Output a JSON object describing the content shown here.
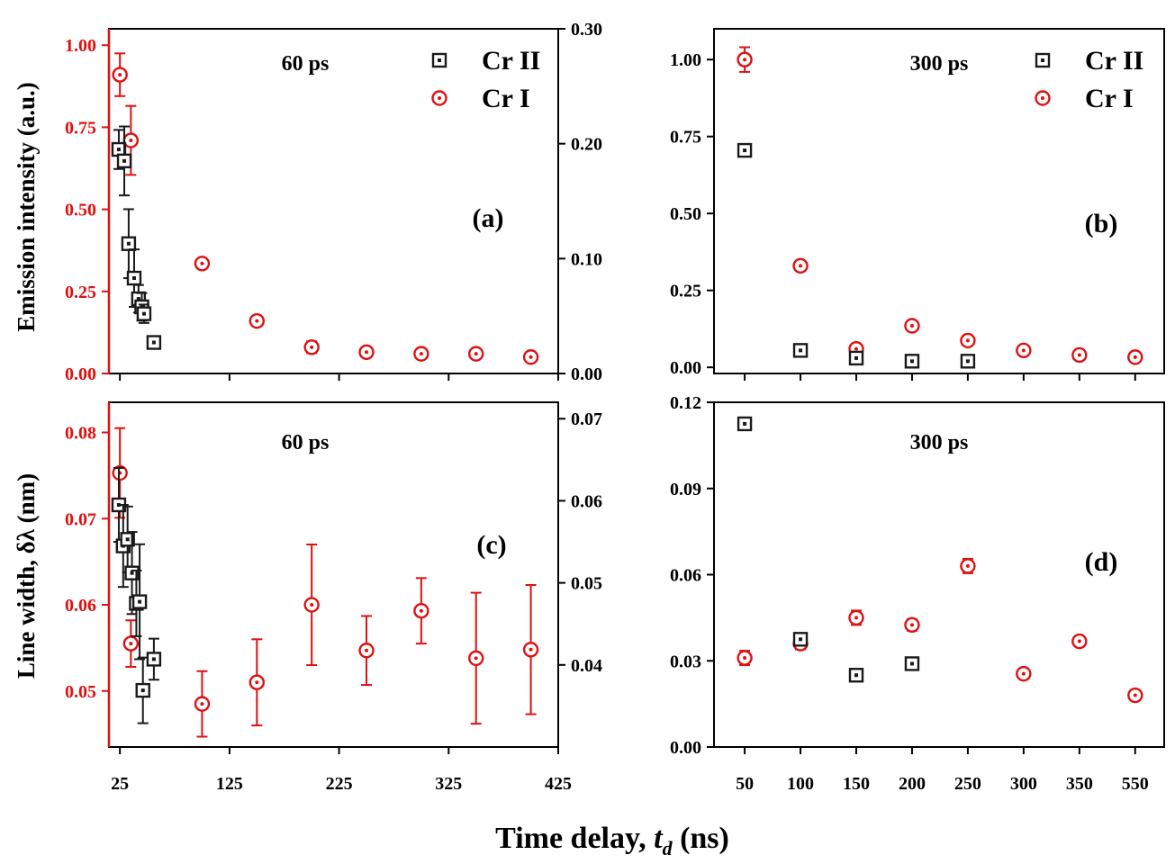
{
  "figure": {
    "xlabel_prefix": "Time delay, ",
    "xlabel_var": "t",
    "xlabel_sub": "d",
    "xlabel_suffix": " (ns)",
    "ylabel_top": "Emission intensity (a.u.)",
    "ylabel_bottom": "Line width, δλ (nm)"
  },
  "colors": {
    "cr2": "#1a1a1a",
    "cr1": "#e01010",
    "axis": "#000000"
  },
  "chart_data": [
    {
      "id": "a",
      "type": "scatter",
      "panel_label": "(a)",
      "title": "60 ps",
      "legend": [
        "Cr II",
        "Cr I"
      ],
      "legend_position": "top-right",
      "xlim": [
        15,
        425
      ],
      "xticks": [
        25,
        125,
        225,
        325,
        425
      ],
      "ylim_left": [
        0,
        1.05
      ],
      "yticks_left": [
        "0.00",
        "0.25",
        "0.50",
        "0.75",
        "1.00"
      ],
      "left_axis_color": "#e01010",
      "ylim_right": [
        0,
        0.3
      ],
      "yticks_right": [
        "0.00",
        "0.10",
        "0.20",
        "0.30"
      ],
      "series": [
        {
          "name": "Cr I",
          "axis": "left",
          "marker": "circle",
          "color": "#e01010",
          "x": [
            25,
            35,
            100,
            150,
            200,
            250,
            300,
            350,
            400
          ],
          "y": [
            0.91,
            0.71,
            0.335,
            0.16,
            0.08,
            0.065,
            0.06,
            0.06,
            0.05
          ],
          "err": [
            0.065,
            0.105,
            0.012,
            0.012,
            0.018,
            0.012,
            0.01,
            0.01,
            0.01
          ]
        },
        {
          "name": "Cr II",
          "axis": "right",
          "marker": "square",
          "color": "#1a1a1a",
          "x": [
            24,
            29,
            33,
            38,
            42,
            45,
            47,
            56
          ],
          "y": [
            0.195,
            0.185,
            0.113,
            0.083,
            0.065,
            0.058,
            0.052,
            0.027
          ],
          "err": [
            0.017,
            0.03,
            0.03,
            0.025,
            0.012,
            0.012,
            0.008,
            0
          ]
        }
      ]
    },
    {
      "id": "b",
      "type": "scatter",
      "panel_label": "(b)",
      "title": "300 ps",
      "legend": [
        "Cr II",
        "Cr I"
      ],
      "legend_position": "top-right",
      "categories": [
        "50",
        "100",
        "150",
        "200",
        "250",
        "300",
        "350",
        "550"
      ],
      "ylim": [
        -0.02,
        1.1
      ],
      "yticks": [
        "0.00",
        "0.25",
        "0.50",
        "0.75",
        "1.00"
      ],
      "series": [
        {
          "name": "Cr I",
          "marker": "circle",
          "color": "#e01010",
          "y": [
            1.0,
            0.33,
            0.06,
            0.135,
            0.087,
            0.055,
            0.04,
            0.033
          ],
          "err": [
            0.04,
            0.01,
            0.01,
            0.01,
            0.01,
            0.01,
            0.01,
            0.01
          ]
        },
        {
          "name": "Cr II",
          "marker": "square",
          "color": "#1a1a1a",
          "y": [
            0.705,
            0.055,
            0.03,
            0.02,
            0.02,
            null,
            null,
            null
          ],
          "err": [
            0.01,
            0.008,
            0.008,
            0.008,
            0.008,
            0,
            0,
            0
          ]
        }
      ]
    },
    {
      "id": "c",
      "type": "scatter",
      "panel_label": "(c)",
      "title": "60 ps",
      "xlim": [
        15,
        425
      ],
      "xticks": [
        25,
        125,
        225,
        325,
        425
      ],
      "xticklabels": [
        "25",
        "125",
        "225",
        "325",
        "425"
      ],
      "ylim_left": [
        0.0435,
        0.0835
      ],
      "yticks_left": [
        "0.05",
        "0.06",
        "0.07",
        "0.08"
      ],
      "left_axis_color": "#e01010",
      "ylim_right": [
        0.03,
        0.072
      ],
      "yticks_right": [
        "0.04",
        "0.05",
        "0.06",
        "0.07"
      ],
      "series": [
        {
          "name": "Cr I",
          "axis": "left",
          "marker": "circle",
          "color": "#e01010",
          "x": [
            25,
            35,
            100,
            150,
            200,
            250,
            300,
            350,
            400
          ],
          "y": [
            0.0753,
            0.0555,
            0.0485,
            0.051,
            0.06,
            0.0547,
            0.0593,
            0.0538,
            0.0548
          ],
          "err": [
            0.0052,
            0.0027,
            0.0038,
            0.005,
            0.007,
            0.004,
            0.0038,
            0.0076,
            0.0075
          ]
        },
        {
          "name": "Cr II",
          "axis": "right",
          "marker": "square",
          "color": "#1a1a1a",
          "x": [
            24,
            28,
            32,
            36,
            40,
            43,
            46,
            56
          ],
          "y": [
            0.0595,
            0.0545,
            0.0553,
            0.0512,
            0.0475,
            0.0477,
            0.0369,
            0.0407
          ],
          "err": [
            0.0045,
            0.005,
            0.004,
            0.005,
            0.004,
            0.007,
            0.004,
            0.0025
          ]
        }
      ]
    },
    {
      "id": "d",
      "type": "scatter",
      "panel_label": "(d)",
      "title": "300 ps",
      "categories": [
        "50",
        "100",
        "150",
        "200",
        "250",
        "300",
        "350",
        "550"
      ],
      "ylim": [
        0,
        0.12
      ],
      "yticks": [
        "0.00",
        "0.03",
        "0.06",
        "0.09",
        "0.12"
      ],
      "series": [
        {
          "name": "Cr I",
          "marker": "circle",
          "color": "#e01010",
          "y": [
            0.031,
            0.036,
            0.045,
            0.0425,
            0.063,
            0.0255,
            0.0368,
            0.018
          ],
          "err": [
            0.0025,
            0.002,
            0.0025,
            0.002,
            0.0025,
            0.0015,
            0.0015,
            0.0015
          ]
        },
        {
          "name": "Cr II",
          "marker": "square",
          "color": "#1a1a1a",
          "y": [
            0.1125,
            0.0375,
            0.025,
            0.029,
            null,
            null,
            null,
            null
          ],
          "err": [
            0.001,
            0.001,
            0.001,
            0.001,
            0,
            0,
            0,
            0
          ]
        }
      ]
    }
  ]
}
